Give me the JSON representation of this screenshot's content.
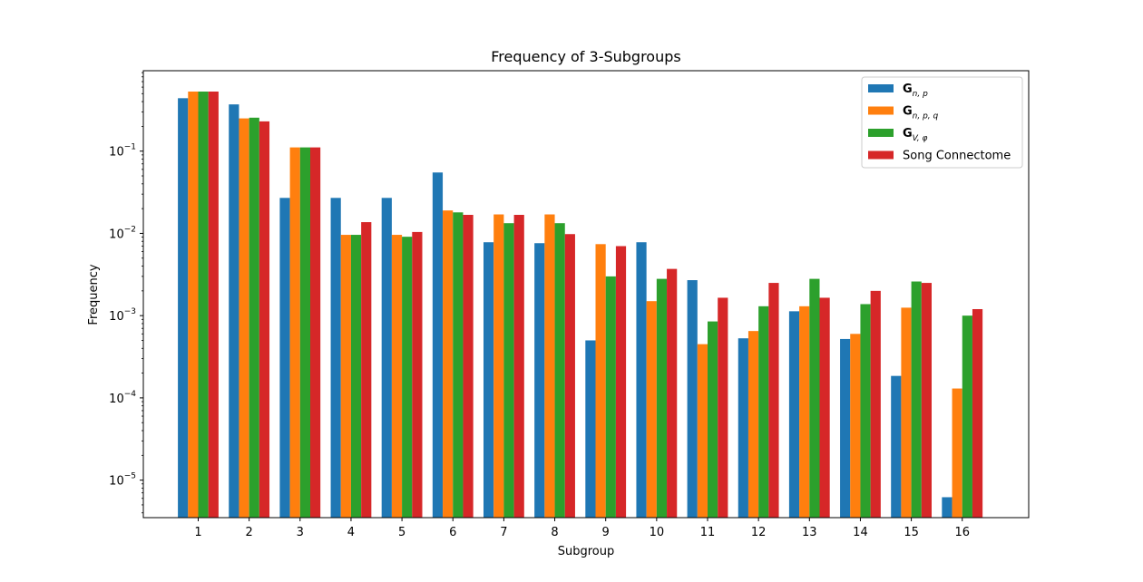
{
  "chart_data": {
    "type": "bar",
    "title": "Frequency of 3-Subgroups",
    "xlabel": "Subgroup",
    "ylabel": "Frequency",
    "yscale": "log",
    "ylim": [
      3.5e-06,
      0.95
    ],
    "categories": [
      "1",
      "2",
      "3",
      "4",
      "5",
      "6",
      "7",
      "8",
      "9",
      "10",
      "11",
      "12",
      "13",
      "14",
      "15",
      "16"
    ],
    "y_ticks": [
      {
        "value": 1e-05,
        "base": "10",
        "exp": "−5"
      },
      {
        "value": 0.0001,
        "base": "10",
        "exp": "−4"
      },
      {
        "value": 0.001,
        "base": "10",
        "exp": "−3"
      },
      {
        "value": 0.01,
        "base": "10",
        "exp": "−2"
      },
      {
        "value": 0.1,
        "base": "10",
        "exp": "−1"
      }
    ],
    "legend_position": "top-right",
    "series": [
      {
        "name": "G_{n,p}",
        "legend_main": "G",
        "legend_sub": "n, p",
        "color": "#1f77b4",
        "values": [
          0.44,
          0.37,
          0.027,
          0.027,
          0.027,
          0.055,
          0.0078,
          0.0076,
          0.0005,
          0.0078,
          0.0027,
          0.00053,
          0.00113,
          0.00052,
          0.000185,
          6.2e-06
        ]
      },
      {
        "name": "G_{n,p,q}",
        "legend_main": "G",
        "legend_sub": "n, p, q",
        "color": "#ff7f0e",
        "values": [
          0.53,
          0.25,
          0.111,
          0.0096,
          0.0096,
          0.019,
          0.017,
          0.017,
          0.0074,
          0.0015,
          0.00045,
          0.00065,
          0.0013,
          0.0006,
          0.00125,
          0.00013
        ]
      },
      {
        "name": "G_{V,φ}",
        "legend_main": "G",
        "legend_sub": "V, φ",
        "color": "#2ca02c",
        "values": [
          0.53,
          0.255,
          0.111,
          0.0096,
          0.0091,
          0.018,
          0.0133,
          0.0133,
          0.003,
          0.0028,
          0.00085,
          0.0013,
          0.0028,
          0.00138,
          0.0026,
          0.001
        ]
      },
      {
        "name": "Song Connectome",
        "legend_main": "Song Connectome",
        "legend_sub": "",
        "color": "#d62728",
        "values": [
          0.53,
          0.23,
          0.111,
          0.0137,
          0.0104,
          0.0168,
          0.0168,
          0.0098,
          0.007,
          0.0037,
          0.00165,
          0.0025,
          0.00165,
          0.002,
          0.0025,
          0.0012
        ]
      }
    ]
  }
}
